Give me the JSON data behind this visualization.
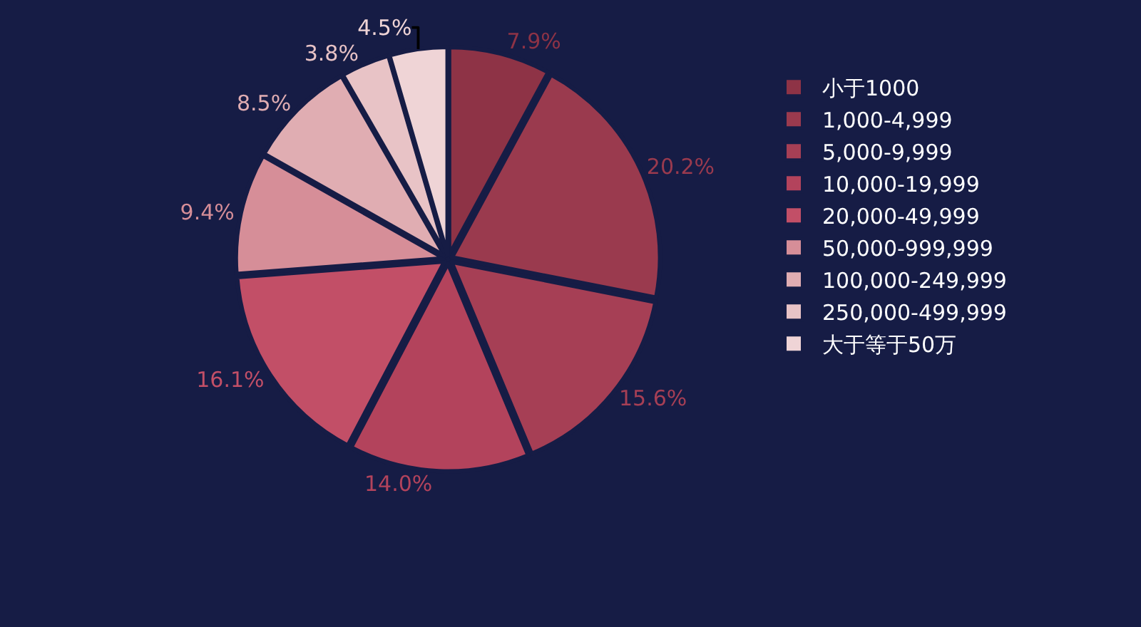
{
  "chart_data": {
    "type": "pie",
    "categories": [
      "小于1000",
      "1,000-4,999",
      "5,000-9,999",
      "10,000-19,999",
      "20,000-49,999",
      "50,000-999,999",
      "100,000-249,999",
      "250,000-499,999",
      "大于等于50万"
    ],
    "values": [
      7.9,
      20.2,
      15.6,
      14.0,
      16.1,
      9.4,
      8.5,
      3.8,
      4.5
    ],
    "value_labels": [
      "7.9%",
      "20.2%",
      "15.6%",
      "14.0%",
      "16.1%",
      "9.4%",
      "8.5%",
      "3.8%",
      "4.5%"
    ],
    "colors": [
      "#8e3346",
      "#9a3a4e",
      "#a63f55",
      "#b3435c",
      "#c24f67",
      "#d68e98",
      "#e0adb2",
      "#e8c3c6",
      "#efd4d6"
    ],
    "legend": "right"
  }
}
